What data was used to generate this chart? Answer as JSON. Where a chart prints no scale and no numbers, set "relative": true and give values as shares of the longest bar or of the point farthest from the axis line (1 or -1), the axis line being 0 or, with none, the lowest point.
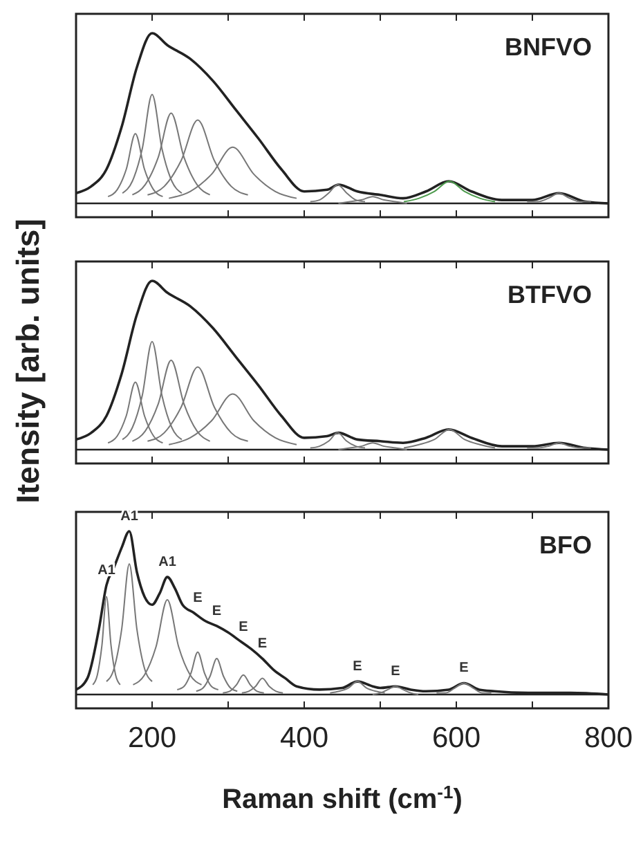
{
  "chart_data": [
    {
      "type": "line",
      "title": "BNFVO",
      "relative": true,
      "xlim": [
        100,
        800
      ],
      "xticks": [
        200,
        {
          "value": 300,
          "label": null
        },
        400,
        {
          "value": 500,
          "label": null
        },
        600,
        {
          "value": 700,
          "label": null
        },
        800
      ],
      "tick_labels": false,
      "series": [
        {
          "color": "#222222",
          "x": [
            100,
            120,
            140,
            160,
            180,
            200,
            220,
            250,
            280,
            310,
            340,
            370,
            400,
            430,
            445,
            470,
            500,
            530,
            560,
            590,
            620,
            660,
            700,
            735,
            770,
            800
          ],
          "values": [
            0.06,
            0.1,
            0.2,
            0.45,
            0.8,
            1.0,
            0.93,
            0.85,
            0.72,
            0.55,
            0.38,
            0.2,
            0.07,
            0.08,
            0.11,
            0.07,
            0.05,
            0.03,
            0.07,
            0.13,
            0.07,
            0.02,
            0.02,
            0.06,
            0.01,
            0
          ]
        },
        {
          "color": "#777777",
          "x": [
            142,
            154,
            166,
            178,
            190,
            202,
            214
          ],
          "values": [
            0.04,
            0.08,
            0.2,
            0.41,
            0.2,
            0.08,
            0.04
          ]
        },
        {
          "color": "#777777",
          "x": [
            161,
            174,
            187,
            200,
            213,
            226,
            239
          ],
          "values": [
            0.06,
            0.13,
            0.32,
            0.64,
            0.32,
            0.13,
            0.06
          ]
        },
        {
          "color": "#777777",
          "x": [
            174,
            191,
            208,
            225,
            242,
            259,
            276
          ],
          "values": [
            0.05,
            0.11,
            0.27,
            0.53,
            0.27,
            0.11,
            0.05
          ]
        },
        {
          "color": "#777777",
          "x": [
            194,
            216,
            238,
            260,
            282,
            304,
            326
          ],
          "values": [
            0.05,
            0.1,
            0.25,
            0.49,
            0.25,
            0.1,
            0.05
          ]
        },
        {
          "color": "#777777",
          "x": [
            222,
            250,
            278,
            306,
            334,
            362,
            390
          ],
          "values": [
            0.03,
            0.07,
            0.17,
            0.33,
            0.17,
            0.07,
            0.03
          ]
        },
        {
          "color": "#777777",
          "x": [
            408,
            420,
            432,
            444,
            456,
            468,
            480
          ],
          "values": [
            0.01,
            0.02,
            0.06,
            0.11,
            0.06,
            0.02,
            0.01
          ]
        },
        {
          "color": "#777777",
          "x": [
            445,
            460,
            475,
            490,
            505,
            520,
            535
          ],
          "values": [
            0,
            0.01,
            0.02,
            0.04,
            0.02,
            0.01,
            0
          ]
        },
        {
          "color": "#4c9a4c",
          "x": [
            531,
            551,
            571,
            591,
            611,
            631,
            651
          ],
          "values": [
            0.01,
            0.03,
            0.07,
            0.13,
            0.07,
            0.03,
            0.01
          ]
        },
        {
          "color": "#777777",
          "x": [
            693,
            707,
            721,
            735,
            749,
            763,
            777
          ],
          "values": [
            0.01,
            0.01,
            0.03,
            0.06,
            0.03,
            0.01,
            0.01
          ]
        }
      ]
    },
    {
      "type": "line",
      "title": "BTFVO",
      "ylabel": "Itensity [arb. units]",
      "relative": true,
      "xlim": [
        100,
        800
      ],
      "xticks": [
        200,
        {
          "value": 300,
          "label": null
        },
        400,
        {
          "value": 500,
          "label": null
        },
        600,
        {
          "value": 700,
          "label": null
        },
        800
      ],
      "tick_labels": false,
      "series": [
        {
          "color": "#222222",
          "x": [
            100,
            120,
            140,
            160,
            180,
            200,
            220,
            250,
            280,
            310,
            340,
            370,
            400,
            430,
            445,
            470,
            500,
            530,
            560,
            590,
            620,
            660,
            700,
            735,
            770,
            800
          ],
          "values": [
            0.06,
            0.1,
            0.2,
            0.45,
            0.8,
            1.0,
            0.93,
            0.85,
            0.72,
            0.55,
            0.38,
            0.2,
            0.07,
            0.08,
            0.1,
            0.06,
            0.05,
            0.04,
            0.07,
            0.12,
            0.07,
            0.02,
            0.02,
            0.04,
            0.01,
            0
          ]
        },
        {
          "color": "#777777",
          "x": [
            142,
            154,
            166,
            178,
            190,
            202,
            214
          ],
          "values": [
            0.04,
            0.08,
            0.2,
            0.4,
            0.2,
            0.08,
            0.04
          ]
        },
        {
          "color": "#777777",
          "x": [
            161,
            174,
            187,
            200,
            213,
            226,
            239
          ],
          "values": [
            0.06,
            0.13,
            0.32,
            0.64,
            0.32,
            0.13,
            0.06
          ]
        },
        {
          "color": "#777777",
          "x": [
            174,
            191,
            208,
            225,
            242,
            259,
            276
          ],
          "values": [
            0.05,
            0.11,
            0.27,
            0.53,
            0.27,
            0.11,
            0.05
          ]
        },
        {
          "color": "#777777",
          "x": [
            194,
            216,
            238,
            260,
            282,
            304,
            326
          ],
          "values": [
            0.05,
            0.1,
            0.25,
            0.49,
            0.25,
            0.1,
            0.05
          ]
        },
        {
          "color": "#777777",
          "x": [
            222,
            250,
            278,
            306,
            334,
            362,
            390
          ],
          "values": [
            0.03,
            0.07,
            0.17,
            0.33,
            0.17,
            0.07,
            0.03
          ]
        },
        {
          "color": "#777777",
          "x": [
            408,
            420,
            432,
            444,
            456,
            468,
            480
          ],
          "values": [
            0.01,
            0.02,
            0.05,
            0.1,
            0.05,
            0.02,
            0.01
          ]
        },
        {
          "color": "#777777",
          "x": [
            445,
            460,
            475,
            490,
            505,
            520,
            535
          ],
          "values": [
            0,
            0.01,
            0.02,
            0.04,
            0.02,
            0.01,
            0
          ]
        },
        {
          "color": "#777777",
          "x": [
            531,
            551,
            571,
            591,
            611,
            631,
            651
          ],
          "values": [
            0.01,
            0.03,
            0.06,
            0.12,
            0.06,
            0.03,
            0.01
          ]
        },
        {
          "color": "#777777",
          "x": [
            693,
            707,
            721,
            735,
            749,
            763,
            777
          ],
          "values": [
            0.01,
            0.01,
            0.02,
            0.04,
            0.02,
            0.01,
            0.01
          ]
        }
      ]
    },
    {
      "type": "line",
      "title": "BFO",
      "xlabel": "Raman shift (cm$^{-1}$)",
      "relative": true,
      "xlim": [
        100,
        800
      ],
      "xticks": [
        200,
        {
          "value": 300,
          "label": null
        },
        400,
        {
          "value": 500,
          "label": null
        },
        600,
        {
          "value": 700,
          "label": null
        },
        800
      ],
      "tick_labels": "x",
      "series": [
        {
          "color": "#222222",
          "x": [
            100,
            115,
            130,
            140,
            150,
            160,
            170,
            180,
            190,
            200,
            210,
            220,
            230,
            240,
            255,
            270,
            285,
            300,
            315,
            330,
            345,
            360,
            375,
            390,
            420,
            450,
            470,
            490,
            500,
            520,
            540,
            560,
            590,
            610,
            630,
            650,
            700,
            750,
            800
          ],
          "values": [
            0.03,
            0.1,
            0.4,
            0.67,
            0.78,
            0.9,
            1.0,
            0.75,
            0.6,
            0.55,
            0.62,
            0.72,
            0.65,
            0.55,
            0.5,
            0.45,
            0.42,
            0.38,
            0.33,
            0.28,
            0.22,
            0.15,
            0.1,
            0.05,
            0.03,
            0.04,
            0.08,
            0.05,
            0.04,
            0.05,
            0.03,
            0.02,
            0.03,
            0.07,
            0.03,
            0.02,
            0.01,
            0.01,
            0
          ]
        },
        {
          "color": "#777777",
          "x": [
            122,
            128,
            134,
            140,
            146,
            152,
            158
          ],
          "values": [
            0.06,
            0.12,
            0.3,
            0.6,
            0.3,
            0.12,
            0.06
          ]
        },
        {
          "color": "#777777",
          "x": [
            140,
            150,
            160,
            170,
            180,
            190,
            200
          ],
          "values": [
            0.08,
            0.16,
            0.4,
            0.8,
            0.4,
            0.16,
            0.08
          ]
        },
        {
          "color": "#777777",
          "x": [
            175,
            190,
            205,
            220,
            235,
            250,
            265
          ],
          "values": [
            0.06,
            0.12,
            0.29,
            0.58,
            0.29,
            0.12,
            0.06
          ]
        },
        {
          "color": "#777777",
          "x": [
            233,
            242,
            251,
            260,
            269,
            278,
            287
          ],
          "values": [
            0.03,
            0.05,
            0.13,
            0.26,
            0.13,
            0.05,
            0.03
          ]
        },
        {
          "color": "#777777",
          "x": [
            258,
            267,
            276,
            285,
            294,
            303,
            312
          ],
          "values": [
            0.02,
            0.04,
            0.11,
            0.22,
            0.11,
            0.04,
            0.02
          ]
        },
        {
          "color": "#777777",
          "x": [
            293,
            302,
            311,
            320,
            329,
            338,
            347
          ],
          "values": [
            0.01,
            0.02,
            0.06,
            0.12,
            0.06,
            0.02,
            0.01
          ]
        },
        {
          "color": "#777777",
          "x": [
            318,
            327,
            336,
            345,
            354,
            363,
            372
          ],
          "values": [
            0.01,
            0.02,
            0.05,
            0.1,
            0.05,
            0.02,
            0.01
          ]
        },
        {
          "color": "#777777",
          "x": [
            434,
            446,
            458,
            470,
            482,
            494,
            506
          ],
          "values": [
            0.01,
            0.02,
            0.04,
            0.08,
            0.04,
            0.02,
            0.01
          ]
        },
        {
          "color": "#777777",
          "x": [
            490,
            500,
            510,
            520,
            530,
            540,
            550
          ],
          "values": [
            0,
            0.01,
            0.03,
            0.05,
            0.03,
            0.01,
            0
          ]
        },
        {
          "color": "#777777",
          "x": [
            574,
            586,
            598,
            610,
            622,
            634,
            646
          ],
          "values": [
            0.01,
            0.01,
            0.04,
            0.07,
            0.04,
            0.01,
            0.01
          ]
        }
      ],
      "annotations": [
        {
          "text": "A1",
          "x": 140,
          "y": 0.67
        },
        {
          "text": "A1",
          "x": 170,
          "y": 1.0
        },
        {
          "text": "A1",
          "x": 220,
          "y": 0.72
        },
        {
          "text": "E",
          "x": 260,
          "y": 0.5
        },
        {
          "text": "E",
          "x": 285,
          "y": 0.42
        },
        {
          "text": "E",
          "x": 320,
          "y": 0.32
        },
        {
          "text": "E",
          "x": 345,
          "y": 0.22
        },
        {
          "text": "E",
          "x": 470,
          "y": 0.08
        },
        {
          "text": "E",
          "x": 520,
          "y": 0.05
        },
        {
          "text": "E",
          "x": 610,
          "y": 0.07
        }
      ]
    }
  ]
}
